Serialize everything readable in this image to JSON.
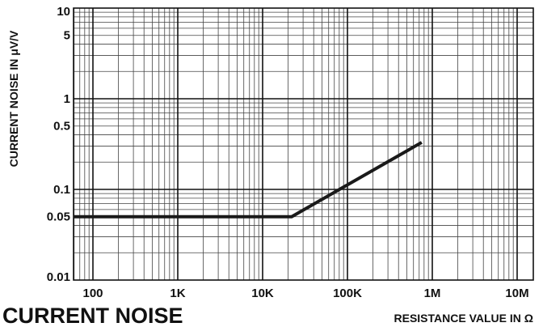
{
  "chart_data": {
    "type": "line",
    "title": "CURRENT NOISE",
    "xlabel": "RESISTANCE VALUE IN Ω",
    "ylabel": "CURRENT NOISE IN μV/V",
    "x_scale": "log",
    "y_scale": "log",
    "xlim": [
      50,
      1500000
    ],
    "ylim": [
      0.01,
      10
    ],
    "grid": true,
    "x_ticks": [
      {
        "value": 100,
        "label": "100"
      },
      {
        "value": 1000,
        "label": "1K"
      },
      {
        "value": 10000,
        "label": "10K"
      },
      {
        "value": 100000,
        "label": "100K"
      },
      {
        "value": 1000000,
        "label": "1M"
      },
      {
        "value": 10000000,
        "label": "10M"
      }
    ],
    "y_ticks": [
      {
        "value": 0.01,
        "label": "0.01"
      },
      {
        "value": 0.05,
        "label": "0.05"
      },
      {
        "value": 0.1,
        "label": "0.1"
      },
      {
        "value": 0.5,
        "label": "0.5"
      },
      {
        "value": 1,
        "label": "1"
      },
      {
        "value": 5,
        "label": "5"
      },
      {
        "value": 10,
        "label": "10"
      }
    ],
    "series": [
      {
        "x": [
          50,
          22000,
          750000
        ],
        "y": [
          0.05,
          0.05,
          0.33
        ],
        "color": "#1a1a1a"
      }
    ]
  }
}
